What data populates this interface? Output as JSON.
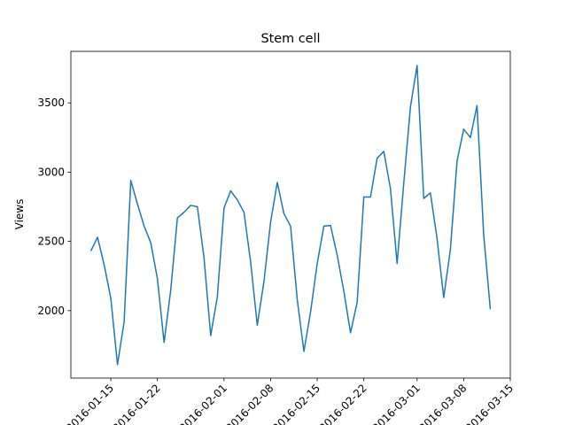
{
  "chart_data": {
    "type": "line",
    "title": "Stem cell",
    "ylabel": "Views",
    "x": [
      "2016-01-12",
      "2016-01-13",
      "2016-01-14",
      "2016-01-15",
      "2016-01-16",
      "2016-01-17",
      "2016-01-18",
      "2016-01-19",
      "2016-01-20",
      "2016-01-21",
      "2016-01-22",
      "2016-01-23",
      "2016-01-24",
      "2016-01-25",
      "2016-01-26",
      "2016-01-27",
      "2016-01-28",
      "2016-01-29",
      "2016-01-30",
      "2016-01-31",
      "2016-02-01",
      "2016-02-02",
      "2016-02-03",
      "2016-02-04",
      "2016-02-05",
      "2016-02-06",
      "2016-02-07",
      "2016-02-08",
      "2016-02-09",
      "2016-02-10",
      "2016-02-11",
      "2016-02-12",
      "2016-02-13",
      "2016-02-14",
      "2016-02-15",
      "2016-02-16",
      "2016-02-17",
      "2016-02-18",
      "2016-02-19",
      "2016-02-20",
      "2016-02-21",
      "2016-02-22",
      "2016-02-23",
      "2016-02-24",
      "2016-02-25",
      "2016-02-26",
      "2016-02-27",
      "2016-02-28",
      "2016-02-29",
      "2016-03-01",
      "2016-03-02",
      "2016-03-03",
      "2016-03-04",
      "2016-03-05",
      "2016-03-06",
      "2016-03-07",
      "2016-03-08",
      "2016-03-09",
      "2016-03-10",
      "2016-03-11",
      "2016-03-12"
    ],
    "series": [
      {
        "color": "#1f77b4",
        "values": [
          2430,
          2530,
          2330,
          2090,
          1610,
          1920,
          2940,
          2770,
          2610,
          2490,
          2230,
          1770,
          2150,
          2670,
          2710,
          2760,
          2750,
          2380,
          1820,
          2100,
          2740,
          2865,
          2800,
          2710,
          2350,
          1895,
          2210,
          2640,
          2925,
          2700,
          2610,
          2080,
          1705,
          1990,
          2340,
          2610,
          2615,
          2400,
          2140,
          1840,
          2060,
          2820,
          2820,
          3100,
          3150,
          2880,
          2340,
          2920,
          3470,
          3770,
          2810,
          2850,
          2520,
          2095,
          2440,
          3080,
          3310,
          3250,
          3480,
          2550,
          2010
        ]
      }
    ],
    "xlim": [
      "2016-01-09",
      "2016-03-15"
    ],
    "xticks": [
      "2016-01-15",
      "2016-01-22",
      "2016-02-01",
      "2016-02-08",
      "2016-02-15",
      "2016-02-22",
      "2016-03-01",
      "2016-03-08",
      "2016-03-15"
    ],
    "ylim": [
      1513,
      3872
    ],
    "yticks": [
      2000,
      2500,
      3000,
      3500
    ]
  }
}
